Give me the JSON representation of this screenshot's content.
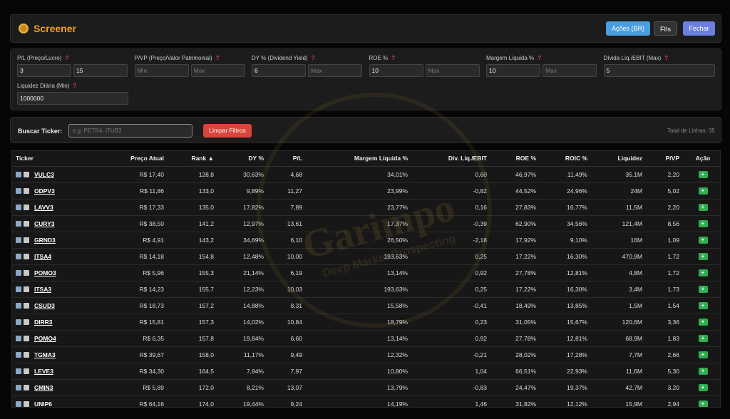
{
  "header": {
    "title": "Screener",
    "buttons": [
      "Ações (BR)",
      "FIIs",
      "Fechar"
    ]
  },
  "help_icon": "?",
  "filters": [
    {
      "label": "P/L (Preço/Lucro)",
      "inputs": [
        {
          "value": "3"
        },
        {
          "value": "15"
        }
      ]
    },
    {
      "label": "P/VP (Preço/Valor Patrimonial)",
      "inputs": [
        {
          "placeholder": "Min"
        },
        {
          "placeholder": "Max"
        }
      ]
    },
    {
      "label": "DY % (Dividend Yield)",
      "inputs": [
        {
          "value": "6"
        },
        {
          "placeholder": "Max"
        }
      ]
    },
    {
      "label": "ROE %",
      "inputs": [
        {
          "value": "10"
        },
        {
          "placeholder": "Max"
        }
      ]
    },
    {
      "label": "Margem Líquida %",
      "inputs": [
        {
          "value": "10"
        },
        {
          "placeholder": "Max"
        }
      ]
    },
    {
      "label": "Dívida Líq./EBIT (Max)",
      "inputs": [
        {
          "value": "5"
        }
      ]
    },
    {
      "label": "Liquidez Diária (Min)",
      "inputs": [
        {
          "value": "1000000"
        }
      ]
    }
  ],
  "search": {
    "label": "Buscar Ticker:",
    "placeholder": "e.g. PETR4, ITUB3",
    "clear_button": "Limpar Filtros",
    "total": "Total de Linhas: 35"
  },
  "watermark": {
    "title": "Garimpo",
    "subtitle": "Deep Market Prospecting"
  },
  "table": {
    "columns": [
      "Ticker",
      "Preço Atual",
      "Rank ▲",
      "DY %",
      "P/L",
      "Margem Líquida %",
      "Dív. Líq./EBIT",
      "ROE %",
      "ROIC %",
      "Liquidez",
      "P/VP",
      "Ação"
    ],
    "action_label": "+",
    "rows": [
      [
        "VULC3",
        "R$ 17,40",
        "128,8",
        "30,63%",
        "4,68",
        "34,01%",
        "0,60",
        "46,97%",
        "11,49%",
        "35,1M",
        "2,20"
      ],
      [
        "ODPV3",
        "R$ 11,86",
        "133,0",
        "9,89%",
        "11,27",
        "23,99%",
        "-0,82",
        "44,52%",
        "24,96%",
        "24M",
        "5,02"
      ],
      [
        "LAVV3",
        "R$ 17,33",
        "135,0",
        "17,82%",
        "7,89",
        "23,77%",
        "0,16",
        "27,83%",
        "16,77%",
        "11,5M",
        "2,20"
      ],
      [
        "CURY3",
        "R$ 38,50",
        "141,2",
        "12,97%",
        "13,61",
        "17,37%",
        "-0,39",
        "62,90%",
        "34,56%",
        "121,4M",
        "8,56"
      ],
      [
        "GRND3",
        "R$ 4,91",
        "143,2",
        "34,69%",
        "6,10",
        "26,50%",
        "-2,18",
        "17,92%",
        "9,10%",
        "16M",
        "1,09"
      ],
      [
        "ITSA4",
        "R$ 14,18",
        "154,8",
        "12,48%",
        "10,00",
        "193,63%",
        "0,25",
        "17,22%",
        "16,30%",
        "470,9M",
        "1,72"
      ],
      [
        "POMO3",
        "R$ 5,96",
        "155,3",
        "21,14%",
        "6,19",
        "13,14%",
        "0,92",
        "27,78%",
        "12,81%",
        "4,8M",
        "1,72"
      ],
      [
        "ITSA3",
        "R$ 14,23",
        "155,7",
        "12,23%",
        "10,03",
        "193,63%",
        "0,25",
        "17,22%",
        "16,30%",
        "3,4M",
        "1,73"
      ],
      [
        "CSUD3",
        "R$ 18,73",
        "157,2",
        "14,88%",
        "8,31",
        "15,58%",
        "-0,41",
        "18,49%",
        "13,85%",
        "1,5M",
        "1,54"
      ],
      [
        "DIRR3",
        "R$ 15,81",
        "157,3",
        "14,02%",
        "10,84",
        "18,79%",
        "0,23",
        "31,05%",
        "15,67%",
        "120,6M",
        "3,36"
      ],
      [
        "POMO4",
        "R$ 6,35",
        "157,8",
        "19,84%",
        "6,60",
        "13,14%",
        "0,92",
        "27,78%",
        "12,81%",
        "68,9M",
        "1,83"
      ],
      [
        "TGMA3",
        "R$ 39,67",
        "158,0",
        "11,17%",
        "9,49",
        "12,32%",
        "-0,21",
        "28,02%",
        "17,28%",
        "7,7M",
        "2,66"
      ],
      [
        "LEVE3",
        "R$ 34,30",
        "164,5",
        "7,94%",
        "7,97",
        "10,80%",
        "1,04",
        "66,51%",
        "22,93%",
        "11,6M",
        "5,30"
      ],
      [
        "CMIN3",
        "R$ 5,89",
        "172,0",
        "8,21%",
        "13,07",
        "13,79%",
        "-0,83",
        "24,47%",
        "19,37%",
        "42,7M",
        "3,20"
      ],
      [
        "UNIP6",
        "R$ 64,16",
        "174,0",
        "19,44%",
        "9,24",
        "14,19%",
        "1,46",
        "31,82%",
        "12,12%",
        "15,9M",
        "2,94"
      ]
    ]
  }
}
